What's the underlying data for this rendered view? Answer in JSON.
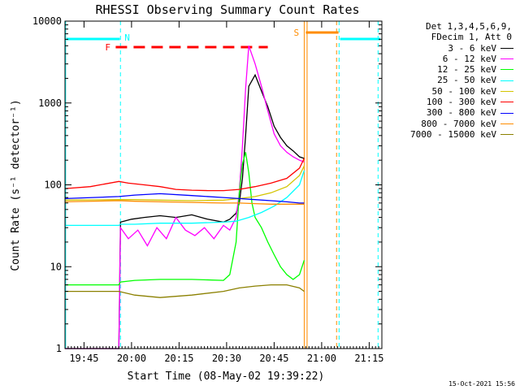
{
  "chart_data": {
    "type": "line",
    "title": "RHESSI Observing Summary Count Rates",
    "xlabel": "Start Time (08-May-02 19:39:22)",
    "ylabel": "Count Rate (s⁻¹ detector⁻¹)",
    "yscale": "log",
    "ylim": [
      1,
      10000
    ],
    "xlim_min_after_1939": [
      0,
      100
    ],
    "grid": false,
    "legend_position": "right",
    "legend_header": [
      "Det 1,3,4,5,6,9,",
      "FDecim 1, Att 0"
    ],
    "x_tick_labels": [
      "19:45",
      "20:00",
      "20:15",
      "20:30",
      "20:45",
      "21:00",
      "21:15"
    ],
    "x_tick_minutes": [
      6,
      21,
      36,
      51,
      66,
      81,
      96
    ],
    "y_tick_labels": [
      "1",
      "10",
      "100",
      "1000",
      "10000"
    ],
    "y_tick_values": [
      1,
      10,
      100,
      1000,
      10000
    ],
    "markers": [
      {
        "label": "N",
        "color": "#00ffff"
      },
      {
        "label": "F",
        "color": "#ff0000"
      },
      {
        "label": "S",
        "color": "#ff8c00"
      }
    ],
    "series": [
      {
        "name": "3 - 6 keV",
        "color": "#000000",
        "x": [
          0,
          17,
          17.5,
          21,
          25,
          30,
          35,
          40,
          45,
          50,
          52,
          54,
          55,
          56,
          57,
          58,
          60,
          62,
          64,
          66,
          68,
          70,
          72,
          74,
          75.5,
          76,
          77,
          78,
          80,
          82,
          83,
          84,
          86,
          88,
          90,
          92,
          94,
          96,
          98,
          100
        ],
        "y": [
          1,
          1,
          35,
          38,
          40,
          42,
          40,
          43,
          38,
          35,
          38,
          45,
          60,
          120,
          400,
          1600,
          2200,
          1400,
          900,
          520,
          380,
          300,
          260,
          220,
          210,
          null,
          null,
          null,
          null,
          null,
          null,
          null,
          null,
          null,
          null,
          null,
          null,
          null,
          null,
          null
        ]
      },
      {
        "name": "6 - 12 keV",
        "color": "#ff00ff",
        "x": [
          0,
          17,
          17.5,
          20,
          23,
          26,
          29,
          32,
          35,
          38,
          41,
          44,
          47,
          50,
          52,
          54,
          55,
          56,
          57,
          58,
          60,
          62,
          64,
          66,
          68,
          70,
          72,
          74,
          75.5
        ],
        "y": [
          1,
          1,
          30,
          22,
          28,
          18,
          30,
          22,
          40,
          28,
          24,
          30,
          22,
          32,
          28,
          40,
          80,
          300,
          1500,
          5000,
          3000,
          1600,
          800,
          420,
          300,
          250,
          220,
          200,
          190
        ]
      },
      {
        "name": "12 - 25 keV",
        "color": "#00ff00",
        "x": [
          0,
          17,
          17.5,
          22,
          30,
          40,
          50,
          52,
          54,
          55,
          56,
          57,
          58,
          59,
          60,
          62,
          64,
          66,
          68,
          70,
          72,
          74,
          75.5
        ],
        "y": [
          6,
          6,
          6.5,
          6.8,
          7,
          7,
          6.8,
          8,
          20,
          80,
          180,
          250,
          140,
          60,
          40,
          30,
          20,
          14,
          10,
          8,
          7,
          8,
          12
        ]
      },
      {
        "name": "25 - 50 keV",
        "color": "#00ffff",
        "x": [
          0,
          17,
          17.5,
          22,
          30,
          40,
          50,
          54,
          58,
          62,
          66,
          70,
          74,
          75.5
        ],
        "y": [
          32,
          32,
          33,
          33,
          34,
          34,
          35,
          36,
          40,
          46,
          55,
          70,
          100,
          150
        ]
      },
      {
        "name": "50 - 100 keV",
        "color": "#d4c400",
        "x": [
          0,
          17,
          22,
          30,
          40,
          50,
          55,
          60,
          65,
          70,
          74,
          75.5
        ],
        "y": [
          65,
          66,
          66,
          65,
          64,
          65,
          68,
          72,
          80,
          95,
          130,
          170
        ]
      },
      {
        "name": "100 - 300 keV",
        "color": "#ff0000",
        "x": [
          0,
          8,
          17,
          20,
          25,
          30,
          35,
          40,
          45,
          50,
          55,
          60,
          65,
          70,
          74,
          75.5
        ],
        "y": [
          90,
          95,
          110,
          105,
          100,
          95,
          88,
          86,
          85,
          85,
          88,
          95,
          105,
          120,
          160,
          210
        ]
      },
      {
        "name": "300 - 800 keV",
        "color": "#0000ff",
        "x": [
          0,
          17,
          22,
          30,
          40,
          50,
          55,
          60,
          65,
          70,
          74,
          75.5
        ],
        "y": [
          68,
          72,
          75,
          78,
          74,
          70,
          68,
          66,
          64,
          62,
          60,
          60
        ]
      },
      {
        "name": "800 - 7000 keV",
        "color": "#ff8c00",
        "x": [
          0,
          17,
          22,
          30,
          40,
          50,
          55,
          60,
          65,
          70,
          74,
          75.5
        ],
        "y": [
          62,
          64,
          63,
          62,
          61,
          60,
          60,
          59,
          58,
          58,
          58,
          58
        ]
      },
      {
        "name": "7000 - 15000 keV",
        "color": "#8b8000",
        "x": [
          0,
          17,
          22,
          30,
          40,
          50,
          55,
          60,
          65,
          70,
          74,
          75.5
        ],
        "y": [
          5,
          5,
          4.5,
          4.2,
          4.5,
          5,
          5.5,
          5.8,
          6,
          6,
          5.5,
          5
        ]
      }
    ]
  },
  "timestamp": "15-Oct-2021 15:56"
}
